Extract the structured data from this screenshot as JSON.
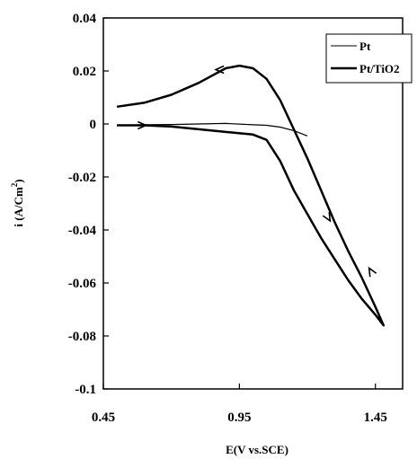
{
  "chart_data": {
    "type": "line",
    "xlabel": "E(V vs.SCE)",
    "ylabel_main": "i (A/Cm",
    "ylabel_sup": "2",
    "ylabel_close": ")",
    "xlim": [
      0.45,
      1.55
    ],
    "ylim": [
      -0.1,
      0.04
    ],
    "x_ticks": [
      {
        "value": 0.45,
        "label": "0.45"
      },
      {
        "value": 0.95,
        "label": "0.95"
      },
      {
        "value": 1.45,
        "label": "1.45"
      }
    ],
    "y_ticks": [
      {
        "value": 0.04,
        "label": "0.04"
      },
      {
        "value": 0.02,
        "label": "0.02"
      },
      {
        "value": 0,
        "label": "0"
      },
      {
        "value": -0.02,
        "label": "-0.02"
      },
      {
        "value": -0.04,
        "label": "-0.04"
      },
      {
        "value": -0.06,
        "label": "-0.06"
      },
      {
        "value": -0.08,
        "label": "-0.08"
      },
      {
        "value": -0.1,
        "label": "-0.1"
      }
    ],
    "legend_position": "top-right",
    "series": [
      {
        "name": "Pt",
        "color": "#000000",
        "style": "thin",
        "points": [
          [
            0.5,
            -0.0005
          ],
          [
            0.6,
            -0.0003
          ],
          [
            0.7,
            -0.0002
          ],
          [
            0.8,
            0.0
          ],
          [
            0.9,
            0.0002
          ],
          [
            1.0,
            -0.0003
          ],
          [
            1.05,
            -0.0005
          ],
          [
            1.1,
            -0.0012
          ],
          [
            1.15,
            -0.0025
          ],
          [
            1.2,
            -0.0045
          ]
        ]
      },
      {
        "name": "Pt/TiO2",
        "color": "#000000",
        "style": "thick",
        "points": [
          [
            0.5,
            -0.0005
          ],
          [
            0.6,
            -0.0005
          ],
          [
            0.7,
            -0.001
          ],
          [
            0.8,
            -0.002
          ],
          [
            0.9,
            -0.003
          ],
          [
            1.0,
            -0.004
          ],
          [
            1.05,
            -0.006
          ],
          [
            1.1,
            -0.014
          ],
          [
            1.15,
            -0.025
          ],
          [
            1.2,
            -0.034
          ],
          [
            1.25,
            -0.043
          ],
          [
            1.3,
            -0.051
          ],
          [
            1.35,
            -0.059
          ],
          [
            1.4,
            -0.066
          ],
          [
            1.45,
            -0.072
          ],
          [
            1.48,
            -0.076
          ],
          [
            1.45,
            -0.069
          ],
          [
            1.4,
            -0.058
          ],
          [
            1.35,
            -0.048
          ],
          [
            1.3,
            -0.037
          ],
          [
            1.25,
            -0.025
          ],
          [
            1.2,
            -0.013
          ],
          [
            1.15,
            -0.002
          ],
          [
            1.1,
            0.009
          ],
          [
            1.05,
            0.017
          ],
          [
            1.0,
            0.021
          ],
          [
            0.95,
            0.022
          ],
          [
            0.9,
            0.021
          ],
          [
            0.8,
            0.0155
          ],
          [
            0.7,
            0.011
          ],
          [
            0.6,
            0.008
          ],
          [
            0.5,
            0.0065
          ]
        ]
      }
    ],
    "arrows": [
      {
        "series": "Pt/TiO2",
        "x": 0.6,
        "y": -0.0005,
        "direction": "right"
      },
      {
        "series": "Pt/TiO2",
        "x": 1.28,
        "y": -0.036,
        "direction": "down-right"
      },
      {
        "series": "Pt/TiO2",
        "x": 1.43,
        "y": -0.055,
        "direction": "up-left"
      },
      {
        "series": "Pt/TiO2",
        "x": 0.87,
        "y": 0.0205,
        "direction": "left"
      }
    ]
  }
}
